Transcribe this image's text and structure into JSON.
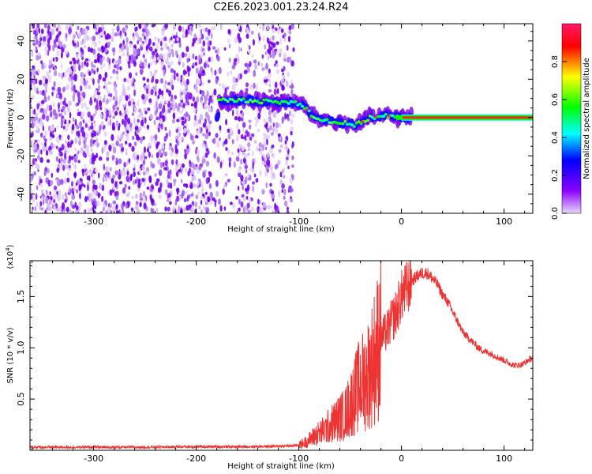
{
  "title": "C2E6.2023.001.23.24.R24",
  "chart_data": [
    {
      "type": "heatmap",
      "xlabel": "Height of straight line (km)",
      "ylabel": "Frequency (Hz)",
      "xlim": [
        -362,
        128
      ],
      "ylim": [
        -50,
        49
      ],
      "xticks": [
        -300,
        -200,
        -100,
        0,
        100
      ],
      "yticks": [
        -40,
        -20,
        0,
        20,
        40
      ],
      "colorbar": {
        "label": "Normalized spectral amplitude",
        "range": [
          0,
          1
        ],
        "ticks": [
          0.0,
          0.2,
          0.4,
          0.6,
          0.8
        ],
        "tick_labels": [
          "0.0",
          "0.2",
          "0.4",
          "0.6",
          "0.8"
        ],
        "colormap": [
          "#e8d8f8",
          "#8a00ff",
          "#0000ff",
          "#00ffff",
          "#00ff00",
          "#ffff00",
          "#ff0000",
          "#ff1a66"
        ]
      },
      "noise_region_x": [
        -362,
        -105
      ],
      "signal_ridge": [
        {
          "x": -178,
          "y": 9
        },
        {
          "x": -150,
          "y": 9
        },
        {
          "x": -120,
          "y": 8
        },
        {
          "x": -105,
          "y": 8
        },
        {
          "x": -95,
          "y": 6
        },
        {
          "x": -85,
          "y": 0
        },
        {
          "x": -70,
          "y": -2
        },
        {
          "x": -55,
          "y": -3
        },
        {
          "x": -45,
          "y": -4
        },
        {
          "x": -30,
          "y": 0
        },
        {
          "x": -15,
          "y": 1
        },
        {
          "x": 0,
          "y": 0
        },
        {
          "x": 128,
          "y": 0
        }
      ]
    },
    {
      "type": "line",
      "xlabel": "Height of straight line (km)",
      "ylabel": "SNR (10 * v/v)",
      "y_multiplier": "(x10",
      "y_multiplier_exp": "4",
      "y_multiplier_close": ")",
      "xlim": [
        -362,
        128
      ],
      "ylim": [
        0,
        18500
      ],
      "xticks": [
        -300,
        -200,
        -100,
        0,
        100
      ],
      "yticks": [
        5000,
        10000,
        15000
      ],
      "ytick_labels": [
        "0.5",
        "1.0",
        "1.5"
      ],
      "color": "#ee3333",
      "series": [
        {
          "x": [
            -362,
            -300,
            -250,
            -200,
            -150,
            -120,
            -105,
            -100,
            -95,
            -90,
            -85,
            -80,
            -75,
            -70,
            -65,
            -60,
            -55,
            -50,
            -45,
            -40,
            -35,
            -30,
            -25,
            -20,
            -15,
            -10,
            -5,
            0,
            5,
            10,
            15,
            20,
            25,
            30,
            35,
            40,
            45,
            50,
            55,
            60,
            65,
            70,
            75,
            80,
            85,
            90,
            95,
            100,
            105,
            110,
            115,
            120,
            125,
            128
          ],
          "y": [
            300,
            300,
            300,
            350,
            350,
            400,
            450,
            500,
            700,
            1000,
            1400,
            1700,
            2000,
            2400,
            2800,
            3200,
            3500,
            4500,
            5500,
            6500,
            7000,
            8000,
            9500,
            11000,
            11500,
            12500,
            13500,
            15000,
            15800,
            16500,
            17000,
            17300,
            17300,
            16800,
            16200,
            15200,
            14500,
            13500,
            12500,
            11500,
            11000,
            10500,
            10000,
            9700,
            9500,
            9300,
            9000,
            8800,
            8500,
            8300,
            8300,
            8500,
            8900,
            9000
          ]
        }
      ]
    }
  ]
}
